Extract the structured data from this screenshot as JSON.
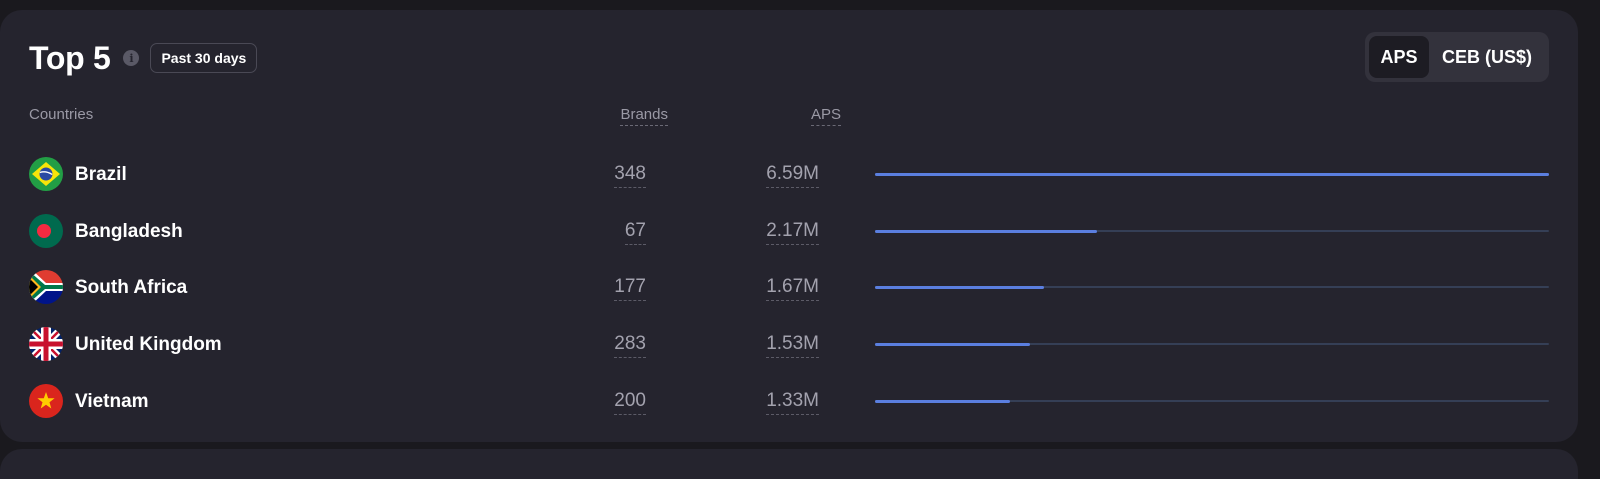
{
  "header": {
    "title": "Top 5",
    "info_icon": "info-icon",
    "period": "Past 30 days"
  },
  "toggle": {
    "options": [
      "APS",
      "CEB (US$)"
    ],
    "selected": "APS"
  },
  "table": {
    "columns": {
      "countries": "Countries",
      "brands": "Brands",
      "aps": "APS"
    },
    "rows": [
      {
        "country": "Brazil",
        "flag": "brazil-flag-icon",
        "brands": "348",
        "aps": "6.59M",
        "share": 1.0
      },
      {
        "country": "Bangladesh",
        "flag": "bangladesh-flag-icon",
        "brands": "67",
        "aps": "2.17M",
        "share": 0.33
      },
      {
        "country": "South Africa",
        "flag": "south-africa-flag-icon",
        "brands": "177",
        "aps": "1.67M",
        "share": 0.25
      },
      {
        "country": "United Kingdom",
        "flag": "united-kingdom-flag-icon",
        "brands": "283",
        "aps": "1.53M",
        "share": 0.23
      },
      {
        "country": "Vietnam",
        "flag": "vietnam-flag-icon",
        "brands": "200",
        "aps": "1.33M",
        "share": 0.2
      }
    ]
  },
  "colors": {
    "card_bg": "#25242e",
    "bar_fill": "#5b7fe0",
    "bar_track": "#353f56"
  }
}
